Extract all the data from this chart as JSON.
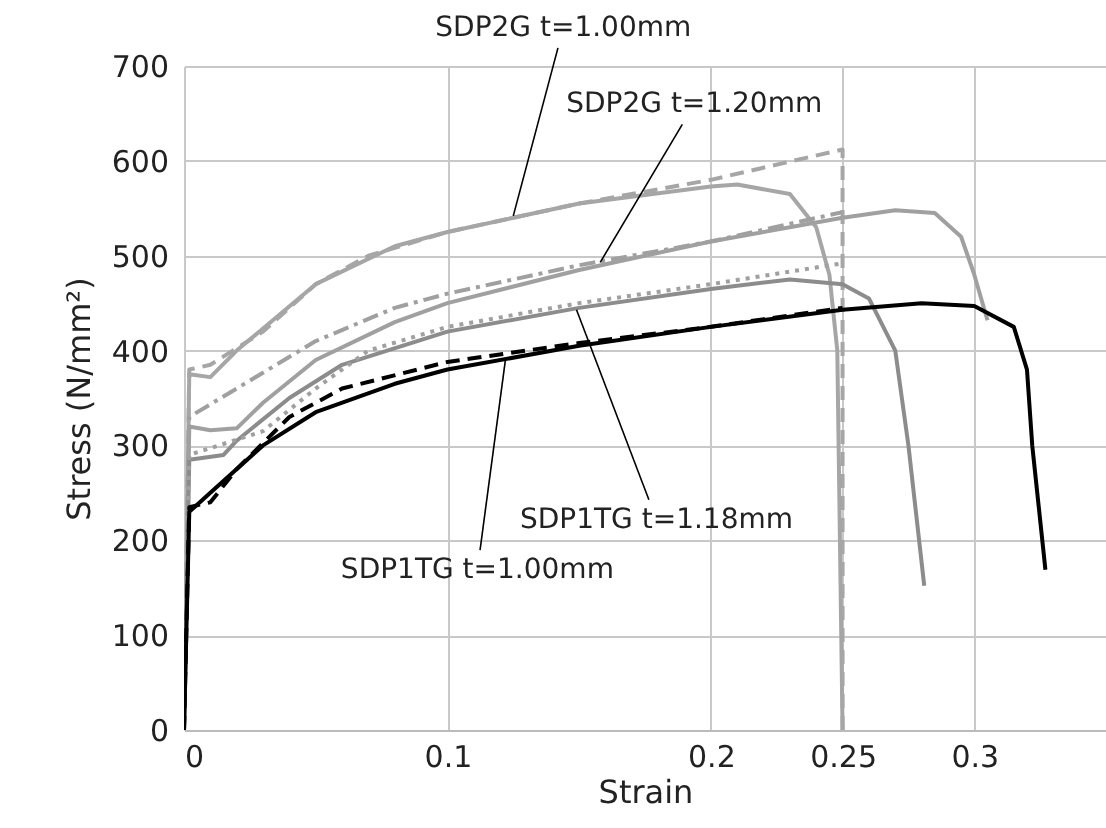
{
  "chart_data": {
    "type": "line",
    "xlabel": "Strain",
    "ylabel": "Stress  (N/mm²)",
    "xlim": [
      0,
      0.35
    ],
    "ylim": [
      0,
      700
    ],
    "xticks": [
      0,
      0.1,
      0.2,
      0.25,
      0.3
    ],
    "yticks": [
      0,
      100,
      200,
      300,
      400,
      500,
      600,
      700
    ],
    "grid": true,
    "series": [
      {
        "color": "#a6a6a6",
        "line_style": "solid",
        "x": [
          0,
          0.002,
          0.01,
          0.02,
          0.05,
          0.08,
          0.1,
          0.15,
          0.2,
          0.21,
          0.23,
          0.24,
          0.245,
          0.248,
          0.25
        ],
        "values": [
          0,
          375,
          372,
          400,
          470,
          510,
          525,
          555,
          573,
          575,
          565,
          530,
          480,
          400,
          0
        ]
      },
      {
        "color": "#a6a6a6",
        "line_style": "dashed",
        "x": [
          0,
          0.002,
          0.01,
          0.03,
          0.05,
          0.07,
          0.1,
          0.15,
          0.2,
          0.25,
          0.25
        ],
        "values": [
          0,
          380,
          385,
          420,
          470,
          500,
          525,
          555,
          580,
          612,
          0
        ]
      },
      {
        "color": "#a0a0a0",
        "line_style": "solid",
        "x": [
          0,
          0.002,
          0.01,
          0.02,
          0.03,
          0.05,
          0.08,
          0.1,
          0.15,
          0.2,
          0.25,
          0.27,
          0.285,
          0.295,
          0.3,
          0.305
        ],
        "values": [
          0,
          320,
          316,
          318,
          345,
          390,
          430,
          450,
          485,
          515,
          540,
          548,
          545,
          520,
          480,
          432
        ]
      },
      {
        "color": "#a0a0a0",
        "line_style": "dashdot",
        "x": [
          0,
          0.002,
          0.02,
          0.05,
          0.08,
          0.1,
          0.15,
          0.2,
          0.25
        ],
        "values": [
          0,
          330,
          360,
          410,
          445,
          460,
          490,
          515,
          546
        ]
      },
      {
        "color": "#8c8c8c",
        "line_style": "solid",
        "x": [
          0,
          0.002,
          0.015,
          0.02,
          0.04,
          0.06,
          0.1,
          0.15,
          0.2,
          0.23,
          0.25,
          0.26,
          0.27,
          0.275,
          0.281
        ],
        "values": [
          0,
          285,
          290,
          305,
          350,
          385,
          420,
          445,
          465,
          475,
          470,
          455,
          400,
          300,
          152
        ]
      },
      {
        "color": "#a0a0a0",
        "line_style": "dotted",
        "x": [
          0,
          0.002,
          0.03,
          0.05,
          0.07,
          0.1,
          0.15,
          0.2,
          0.25
        ],
        "values": [
          0,
          290,
          315,
          360,
          400,
          425,
          450,
          470,
          492
        ]
      },
      {
        "color": "#000000",
        "line_style": "solid",
        "x": [
          0,
          0.002,
          0.01,
          0.03,
          0.05,
          0.08,
          0.1,
          0.15,
          0.2,
          0.25,
          0.28,
          0.3,
          0.315,
          0.32,
          0.322,
          0.327
        ],
        "values": [
          0,
          230,
          250,
          300,
          335,
          365,
          380,
          405,
          425,
          443,
          450,
          447,
          425,
          380,
          300,
          169
        ]
      },
      {
        "color": "#000000",
        "line_style": "dashed",
        "x": [
          0,
          0.002,
          0.01,
          0.02,
          0.04,
          0.06,
          0.1,
          0.15,
          0.2,
          0.25
        ],
        "values": [
          0,
          235,
          240,
          275,
          330,
          360,
          388,
          408,
          425,
          445
        ]
      }
    ],
    "annotations": [
      {
        "text": "SDP2G t=1.00mm",
        "x": 0.125,
        "y": 542
      },
      {
        "text": "SDP2G t=1.20mm",
        "x": 0.158,
        "y": 493
      },
      {
        "text": "SDP1TG t=1.18mm",
        "x": 0.149,
        "y": 443
      },
      {
        "text": "SDP1TG t=1.00mm",
        "x": 0.122,
        "y": 390
      }
    ]
  }
}
